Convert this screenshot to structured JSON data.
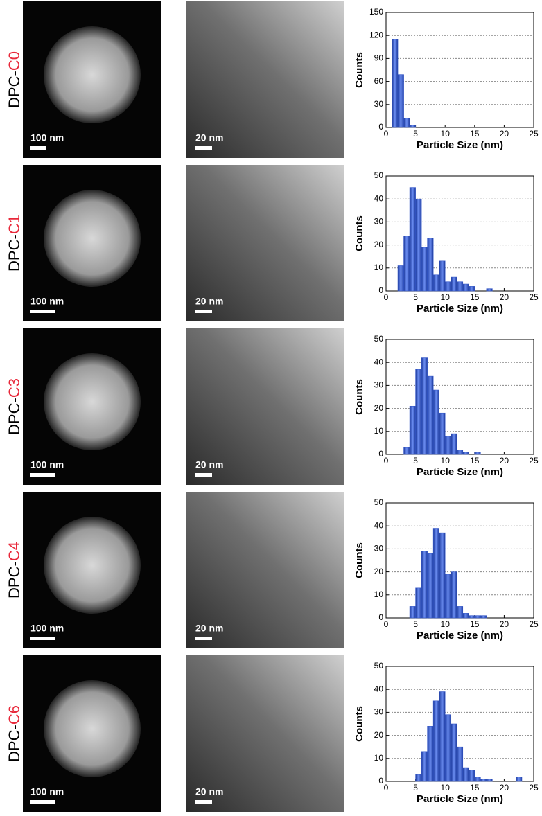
{
  "panels": [
    {
      "prefix": "DPC-",
      "sample": "C0",
      "stem_scale": "100 nm",
      "tem_scale": "20 nm"
    },
    {
      "prefix": "DPC-",
      "sample": "C1",
      "stem_scale": "100 nm",
      "tem_scale": "20 nm"
    },
    {
      "prefix": "DPC-",
      "sample": "C3",
      "stem_scale": "100 nm",
      "tem_scale": "20 nm"
    },
    {
      "prefix": "DPC-",
      "sample": "C4",
      "stem_scale": "100 nm",
      "tem_scale": "20 nm"
    },
    {
      "prefix": "DPC-",
      "sample": "C6",
      "stem_scale": "100 nm",
      "tem_scale": "20 nm"
    }
  ],
  "chart_data": [
    {
      "type": "histogram",
      "x_label": "Particle Size (nm)",
      "y_label": "Counts",
      "color": "#3558c8",
      "bins": [
        1,
        2,
        3,
        4,
        5
      ],
      "values": [
        115,
        69,
        12,
        3
      ],
      "xlim": [
        0,
        25
      ],
      "xticks": [
        0,
        5,
        10,
        15,
        20,
        25
      ],
      "ylim": [
        0,
        150
      ],
      "yticks": [
        0,
        30,
        60,
        90,
        120,
        150
      ],
      "grid": true
    },
    {
      "type": "histogram",
      "x_label": "Particle Size (nm)",
      "y_label": "Counts",
      "color": "#3558c8",
      "bins": [
        2,
        3,
        4,
        5,
        6,
        7,
        8,
        9,
        10,
        11,
        12,
        13,
        14,
        15,
        16,
        17,
        18
      ],
      "values": [
        11,
        24,
        45,
        40,
        19,
        23,
        7,
        13,
        4,
        6,
        4,
        3,
        2,
        0,
        0,
        1
      ],
      "xlim": [
        0,
        25
      ],
      "xticks": [
        0,
        5,
        10,
        15,
        20,
        25
      ],
      "ylim": [
        0,
        50
      ],
      "yticks": [
        0,
        10,
        20,
        30,
        40,
        50
      ],
      "grid": true
    },
    {
      "type": "histogram",
      "x_label": "Particle Size (nm)",
      "y_label": "Counts",
      "color": "#3558c8",
      "bins": [
        3,
        4,
        5,
        6,
        7,
        8,
        9,
        10,
        11,
        12,
        13,
        14,
        15,
        16
      ],
      "values": [
        3,
        21,
        37,
        42,
        34,
        28,
        18,
        8,
        9,
        2,
        1,
        0,
        1
      ],
      "xlim": [
        0,
        25
      ],
      "xticks": [
        0,
        5,
        10,
        15,
        20,
        25
      ],
      "ylim": [
        0,
        50
      ],
      "yticks": [
        0,
        10,
        20,
        30,
        40,
        50
      ],
      "grid": true
    },
    {
      "type": "histogram",
      "x_label": "Particle Size (nm)",
      "y_label": "Counts",
      "color": "#3558c8",
      "bins": [
        4,
        5,
        6,
        7,
        8,
        9,
        10,
        11,
        12,
        13,
        14,
        15,
        16,
        17
      ],
      "values": [
        5,
        13,
        29,
        28,
        39,
        37,
        19,
        20,
        5,
        2,
        1,
        1,
        1
      ],
      "xlim": [
        0,
        25
      ],
      "xticks": [
        0,
        5,
        10,
        15,
        20,
        25
      ],
      "ylim": [
        0,
        50
      ],
      "yticks": [
        0,
        10,
        20,
        30,
        40,
        50
      ],
      "grid": true
    },
    {
      "type": "histogram",
      "x_label": "Particle Size (nm)",
      "y_label": "Counts",
      "color": "#3558c8",
      "bins": [
        5,
        6,
        7,
        8,
        9,
        10,
        11,
        12,
        13,
        14,
        15,
        16,
        17,
        18,
        19,
        20,
        21,
        22,
        23
      ],
      "values": [
        3,
        13,
        24,
        35,
        39,
        29,
        25,
        15,
        6,
        5,
        2,
        1,
        1,
        0,
        0,
        0,
        0,
        2
      ],
      "xlim": [
        0,
        25
      ],
      "xticks": [
        0,
        5,
        10,
        15,
        20,
        25
      ],
      "ylim": [
        0,
        50
      ],
      "yticks": [
        0,
        10,
        20,
        30,
        40,
        50
      ],
      "grid": true
    }
  ]
}
